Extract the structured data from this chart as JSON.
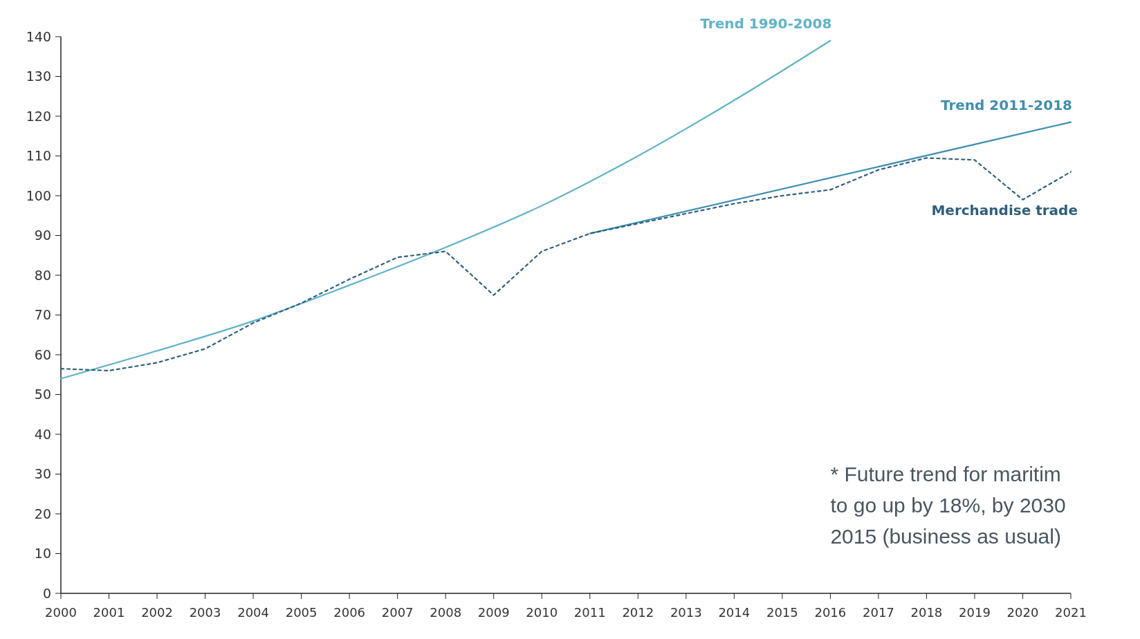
{
  "chart_data": {
    "type": "line",
    "x": [
      2000,
      2001,
      2002,
      2003,
      2004,
      2005,
      2006,
      2007,
      2008,
      2009,
      2010,
      2011,
      2012,
      2013,
      2014,
      2015,
      2016,
      2017,
      2018,
      2019,
      2020,
      2021
    ],
    "xlim": [
      2000,
      2021
    ],
    "xticks": [
      2000,
      2001,
      2002,
      2003,
      2004,
      2005,
      2006,
      2007,
      2008,
      2009,
      2010,
      2011,
      2012,
      2013,
      2014,
      2015,
      2016,
      2017,
      2018,
      2019,
      2020,
      2021
    ],
    "ylim": [
      0,
      140
    ],
    "yticks": [
      0,
      10,
      20,
      30,
      40,
      50,
      60,
      70,
      80,
      90,
      100,
      110,
      120,
      130,
      140
    ],
    "grid": false,
    "legend": false,
    "marker": "none",
    "series": [
      {
        "name": "Trend 1990-2008",
        "color": "#5fb3c9",
        "line_style": "solid",
        "x": [
          2000,
          2002,
          2004,
          2006,
          2008,
          2010,
          2012,
          2014,
          2016
        ],
        "values": [
          54,
          61,
          68.5,
          77.5,
          87,
          97.5,
          110,
          124,
          139
        ]
      },
      {
        "name": "Trend 2011-2018",
        "color": "#3f8fb0",
        "line_style": "solid",
        "x": [
          2011,
          2021
        ],
        "values": [
          90.5,
          118.5
        ]
      },
      {
        "name": "Merchandise trade",
        "color": "#2f5f7a",
        "line_style": "dotted",
        "values": [
          56.5,
          56,
          58,
          61.5,
          68,
          73,
          79,
          84.5,
          86,
          75,
          86,
          90.5,
          93,
          95.5,
          98,
          100,
          101.5,
          106.5,
          109.5,
          109,
          99,
          106
        ]
      }
    ],
    "annotations": [
      "* Future trend for maritim",
      "to go up by 18%, by 2030",
      "2015 (business as usual)"
    ]
  }
}
